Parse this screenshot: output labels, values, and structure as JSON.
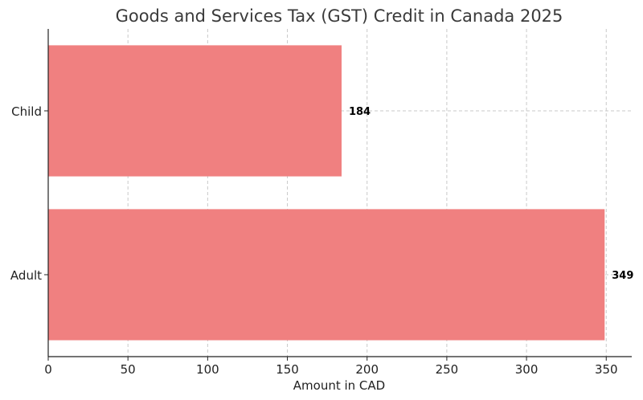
{
  "chart_data": {
    "type": "bar",
    "orientation": "horizontal",
    "title": "Goods and Services Tax (GST) Credit in Canada 2025",
    "xlabel": "Amount in CAD",
    "ylabel": "",
    "categories": [
      "Adult",
      "Child"
    ],
    "values": [
      349,
      184
    ],
    "data_labels": [
      "349",
      "184"
    ],
    "xlim": [
      0,
      366
    ],
    "xticks": [
      0,
      50,
      100,
      150,
      200,
      250,
      300,
      350
    ],
    "grid": true,
    "bar_color": "#f08080"
  }
}
